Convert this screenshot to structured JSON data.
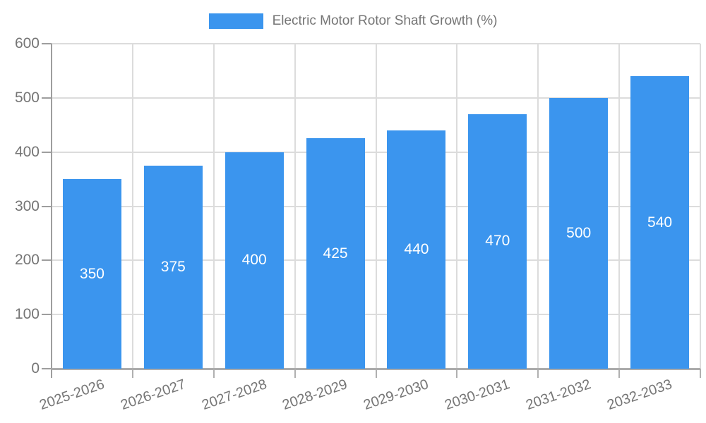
{
  "legend": {
    "label": "Electric Motor Rotor Shaft Growth (%)"
  },
  "colors": {
    "bar": "#3b95ee",
    "grid": "#dcdcdc",
    "y_axis_line": "#9e9e9e",
    "x_axis_line": "#ababab",
    "y_tick": "#9e9e9e",
    "x_tick": "#b0b0b0",
    "axis_text": "#757575",
    "bar_label_text": "#ffffff",
    "background": "#ffffff"
  },
  "chart_data": {
    "type": "bar",
    "title": "Electric Motor Rotor Shaft Growth (%)",
    "categories": [
      "2025-2026",
      "2026-2027",
      "2027-2028",
      "2028-2029",
      "2029-2030",
      "2030-2031",
      "2031-2032",
      "2032-2033"
    ],
    "values": [
      350,
      375,
      400,
      425,
      440,
      470,
      500,
      540
    ],
    "xlabel": "",
    "ylabel": "",
    "ylim": [
      0,
      600
    ],
    "yticks": [
      0,
      100,
      200,
      300,
      400,
      500,
      600
    ],
    "grid": true,
    "legend_position": "top-center",
    "bar_value_labels": "inside-center"
  }
}
